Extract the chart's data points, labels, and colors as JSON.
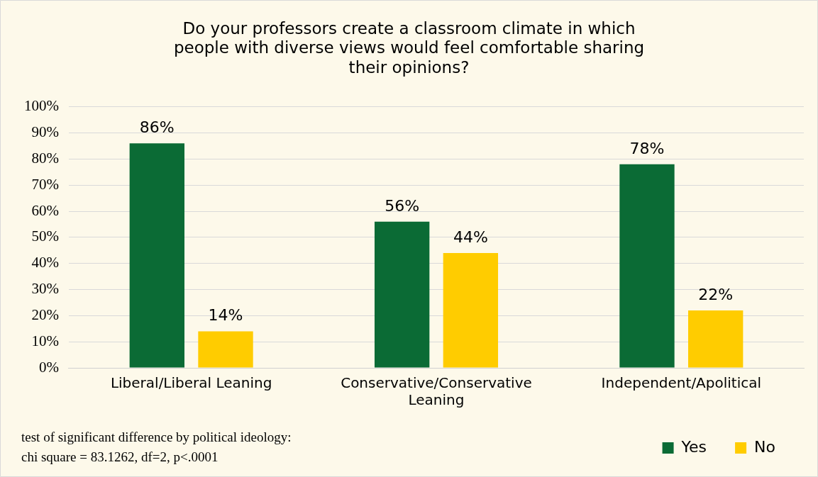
{
  "chart_data": {
    "type": "bar",
    "title": "Do your professors create a classroom climate in which people with diverse views would feel comfortable sharing their opinions?",
    "categories": [
      "Liberal/Liberal Leaning",
      "Conservative/Conservative Leaning",
      "Independent/Apolitical"
    ],
    "series": [
      {
        "name": "Yes",
        "color": "#0b6b35",
        "values": [
          86,
          56,
          78
        ],
        "value_labels": [
          "86%",
          "56%",
          "78%"
        ]
      },
      {
        "name": "No",
        "color": "#ffcc00",
        "values": [
          14,
          44,
          22
        ],
        "value_labels": [
          "14%",
          "44%",
          "22%"
        ]
      }
    ],
    "ylim": [
      0,
      100
    ],
    "yticks": [
      {
        "value": 0,
        "label": "0%"
      },
      {
        "value": 10,
        "label": "10%"
      },
      {
        "value": 20,
        "label": "20%"
      },
      {
        "value": 30,
        "label": "30%"
      },
      {
        "value": 40,
        "label": "40%"
      },
      {
        "value": 50,
        "label": "50%"
      },
      {
        "value": 60,
        "label": "60%"
      },
      {
        "value": 70,
        "label": "70%"
      },
      {
        "value": 80,
        "label": "80%"
      },
      {
        "value": 90,
        "label": "90%"
      },
      {
        "value": 100,
        "label": "100%"
      }
    ],
    "grid": "y",
    "legend": "bottom right",
    "annotations": [
      "test of significant difference by political ideology:",
      "chi square = 83.1262, df=2, p<.0001"
    ]
  }
}
